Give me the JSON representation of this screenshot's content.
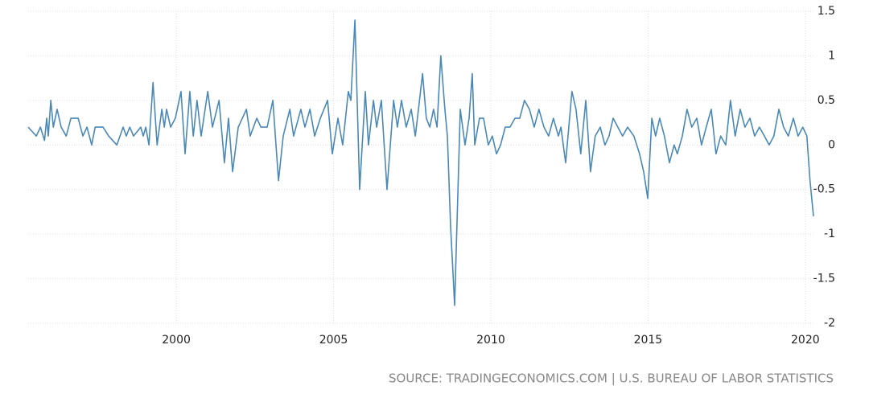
{
  "chart_data": {
    "type": "line",
    "source": "SOURCE: TRADINGECONOMICS.COM | U.S. BUREAU OF LABOR STATISTICS",
    "xlim": [
      1995.29,
      2020.26
    ],
    "xticks": [
      2000,
      2005,
      2010,
      2015,
      2020
    ],
    "ylim": [
      -2,
      1.5
    ],
    "yticks": [
      1.5,
      1,
      0.5,
      0,
      -0.5,
      -1,
      -1.5,
      -2
    ],
    "grid": true,
    "color": "#4a88b6",
    "x": [
      1995.29,
      1995.55,
      1995.68,
      1995.81,
      1995.88,
      1995.93,
      1996.01,
      1996.09,
      1996.21,
      1996.34,
      1996.5,
      1996.65,
      1996.88,
      1997.03,
      1997.16,
      1997.31,
      1997.42,
      1997.67,
      1997.85,
      1998.11,
      1998.31,
      1998.41,
      1998.52,
      1998.64,
      1998.87,
      1998.95,
      1999.03,
      1999.13,
      1999.26,
      1999.39,
      1999.54,
      1999.62,
      1999.69,
      1999.82,
      1999.97,
      2000.15,
      2000.28,
      2000.43,
      2000.54,
      2000.66,
      2000.79,
      2001.0,
      2001.15,
      2001.36,
      2001.53,
      2001.66,
      2001.79,
      2001.97,
      2002.23,
      2002.35,
      2002.56,
      2002.69,
      2002.89,
      2003.07,
      2003.25,
      2003.4,
      2003.61,
      2003.73,
      2003.96,
      2004.09,
      2004.25,
      2004.4,
      2004.58,
      2004.81,
      2004.96,
      2005.14,
      2005.29,
      2005.47,
      2005.55,
      2005.68,
      2005.83,
      2006.01,
      2006.11,
      2006.27,
      2006.37,
      2006.52,
      2006.7,
      2006.91,
      2007.03,
      2007.16,
      2007.31,
      2007.47,
      2007.6,
      2007.7,
      2007.83,
      2007.95,
      2008.06,
      2008.18,
      2008.29,
      2008.41,
      2008.54,
      2008.62,
      2008.72,
      2008.85,
      2009.03,
      2009.18,
      2009.31,
      2009.41,
      2009.49,
      2009.64,
      2009.77,
      2009.92,
      2010.05,
      2010.18,
      2010.31,
      2010.46,
      2010.61,
      2010.77,
      2010.92,
      2011.07,
      2011.23,
      2011.38,
      2011.53,
      2011.69,
      2011.84,
      2011.99,
      2012.15,
      2012.23,
      2012.38,
      2012.58,
      2012.71,
      2012.86,
      2013.02,
      2013.17,
      2013.32,
      2013.48,
      2013.63,
      2013.76,
      2013.89,
      2014.04,
      2014.19,
      2014.35,
      2014.55,
      2014.73,
      2014.86,
      2014.99,
      2015.12,
      2015.24,
      2015.37,
      2015.52,
      2015.68,
      2015.83,
      2015.93,
      2016.09,
      2016.24,
      2016.39,
      2016.55,
      2016.7,
      2016.85,
      2017.01,
      2017.16,
      2017.31,
      2017.47,
      2017.62,
      2017.77,
      2017.93,
      2018.08,
      2018.24,
      2018.39,
      2018.54,
      2018.7,
      2018.85,
      2019.0,
      2019.16,
      2019.31,
      2019.46,
      2019.62,
      2019.77,
      2019.92,
      2020.05,
      2020.15,
      2020.26
    ],
    "values": [
      0.2,
      0.1,
      0.2,
      0.05,
      0.3,
      0.1,
      0.5,
      0.2,
      0.4,
      0.2,
      0.1,
      0.3,
      0.3,
      0.1,
      0.2,
      0.0,
      0.2,
      0.2,
      0.1,
      0.0,
      0.2,
      0.1,
      0.2,
      0.1,
      0.2,
      0.1,
      0.2,
      0.0,
      0.7,
      0.0,
      0.4,
      0.2,
      0.4,
      0.2,
      0.3,
      0.6,
      -0.1,
      0.6,
      0.1,
      0.5,
      0.1,
      0.6,
      0.2,
      0.5,
      -0.2,
      0.3,
      -0.3,
      0.2,
      0.4,
      0.1,
      0.3,
      0.2,
      0.2,
      0.5,
      -0.4,
      0.1,
      0.4,
      0.1,
      0.4,
      0.2,
      0.4,
      0.1,
      0.3,
      0.5,
      -0.1,
      0.3,
      0.0,
      0.6,
      0.5,
      1.4,
      -0.5,
      0.6,
      0.0,
      0.5,
      0.2,
      0.5,
      -0.5,
      0.5,
      0.2,
      0.5,
      0.2,
      0.4,
      0.1,
      0.4,
      0.8,
      0.3,
      0.2,
      0.4,
      0.2,
      1.0,
      0.4,
      0.1,
      -0.9,
      -1.8,
      0.4,
      0.0,
      0.3,
      0.8,
      0.0,
      0.3,
      0.3,
      0.0,
      0.1,
      -0.1,
      0.0,
      0.2,
      0.2,
      0.3,
      0.3,
      0.5,
      0.4,
      0.2,
      0.4,
      0.2,
      0.1,
      0.3,
      0.1,
      0.2,
      -0.2,
      0.6,
      0.4,
      -0.1,
      0.5,
      -0.3,
      0.1,
      0.2,
      0.0,
      0.1,
      0.3,
      0.2,
      0.1,
      0.2,
      0.1,
      -0.1,
      -0.3,
      -0.6,
      0.3,
      0.1,
      0.3,
      0.1,
      -0.2,
      0.0,
      -0.1,
      0.1,
      0.4,
      0.2,
      0.3,
      0.0,
      0.2,
      0.4,
      -0.1,
      0.1,
      0.0,
      0.5,
      0.1,
      0.4,
      0.2,
      0.3,
      0.1,
      0.2,
      0.1,
      0.0,
      0.1,
      0.4,
      0.2,
      0.1,
      0.3,
      0.1,
      0.2,
      0.1,
      -0.4,
      -0.8
    ]
  }
}
